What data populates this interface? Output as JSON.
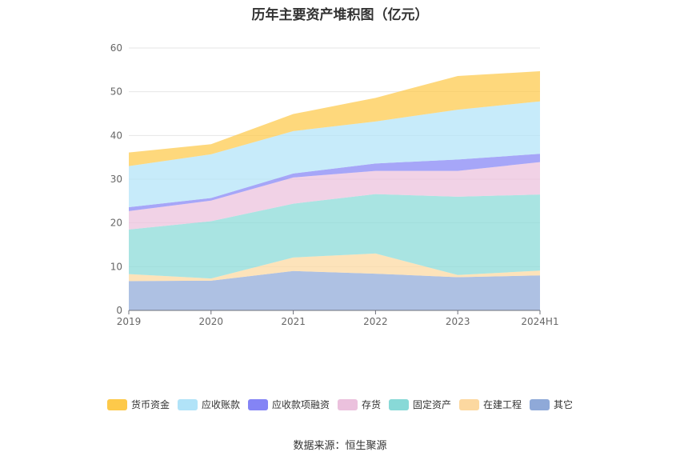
{
  "title": "历年主要资产堆积图（亿元）",
  "source": "数据来源：恒生聚源",
  "chart_data": {
    "type": "area",
    "stacked": true,
    "categories": [
      "2019",
      "2020",
      "2021",
      "2022",
      "2023",
      "2024H1"
    ],
    "ylim": [
      0,
      60
    ],
    "yticks": [
      0,
      10,
      20,
      30,
      40,
      50,
      60
    ],
    "grid": true,
    "legend_position": "bottom",
    "series": [
      {
        "name": "其它",
        "color": "#8fa9d8",
        "values": [
          6.7,
          6.8,
          9.0,
          8.4,
          7.6,
          8.0
        ]
      },
      {
        "name": "在建工程",
        "color": "#fcd8a0",
        "values": [
          1.6,
          0.5,
          3.1,
          4.6,
          0.5,
          1.1
        ]
      },
      {
        "name": "固定资产",
        "color": "#88d9d7",
        "values": [
          10.2,
          13.1,
          12.3,
          13.6,
          17.9,
          17.4
        ]
      },
      {
        "name": "存货",
        "color": "#ebc1dd",
        "values": [
          4.2,
          4.7,
          6.0,
          5.3,
          5.9,
          7.4
        ]
      },
      {
        "name": "应收款项融资",
        "color": "#8484f5",
        "values": [
          0.9,
          0.6,
          0.9,
          1.7,
          2.6,
          1.9
        ]
      },
      {
        "name": "应收账款",
        "color": "#b1e3f8",
        "values": [
          9.4,
          10.0,
          9.7,
          9.6,
          11.4,
          12.0
        ]
      },
      {
        "name": "货币资金",
        "color": "#fdc94a",
        "values": [
          3.1,
          2.3,
          3.9,
          5.4,
          7.7,
          6.9
        ]
      }
    ]
  }
}
